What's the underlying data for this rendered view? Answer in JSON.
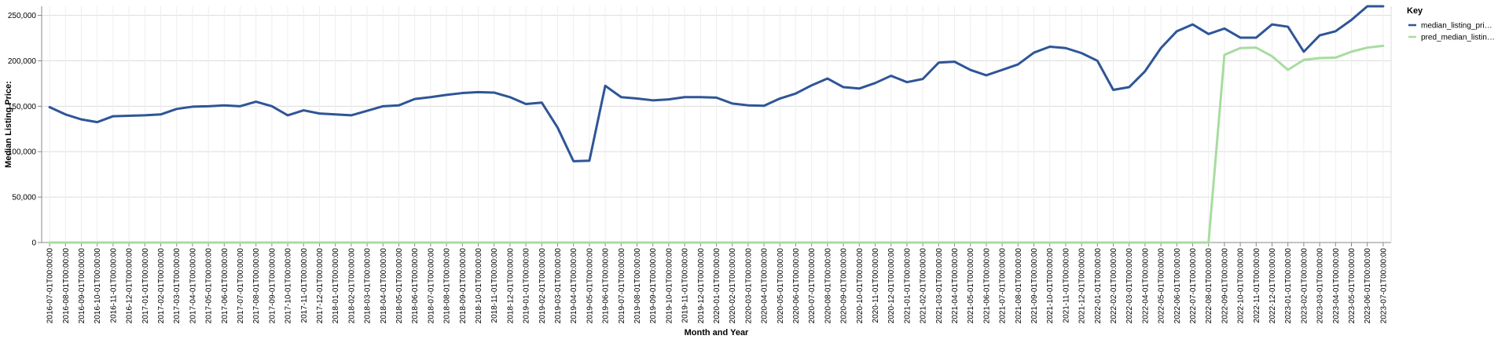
{
  "chart_data": {
    "type": "line",
    "xlabel": "Month and Year",
    "ylabel": "Median Listing Price:",
    "ylim": [
      0,
      260000
    ],
    "yticks": [
      0,
      50000,
      100000,
      150000,
      200000,
      250000
    ],
    "ytick_labels": [
      "0",
      "50,000",
      "100,000",
      "150,000",
      "200,000",
      "250,000"
    ],
    "grid": true,
    "legend_title": "Key",
    "legend_position": "right",
    "x": [
      "2016-07-01T00:00:00",
      "2016-08-01T00:00:00",
      "2016-09-01T00:00:00",
      "2016-10-01T00:00:00",
      "2016-11-01T00:00:00",
      "2016-12-01T00:00:00",
      "2017-01-01T00:00:00",
      "2017-02-01T00:00:00",
      "2017-03-01T00:00:00",
      "2017-04-01T00:00:00",
      "2017-05-01T00:00:00",
      "2017-06-01T00:00:00",
      "2017-07-01T00:00:00",
      "2017-08-01T00:00:00",
      "2017-09-01T00:00:00",
      "2017-10-01T00:00:00",
      "2017-11-01T00:00:00",
      "2017-12-01T00:00:00",
      "2018-01-01T00:00:00",
      "2018-02-01T00:00:00",
      "2018-03-01T00:00:00",
      "2018-04-01T00:00:00",
      "2018-05-01T00:00:00",
      "2018-06-01T00:00:00",
      "2018-07-01T00:00:00",
      "2018-08-01T00:00:00",
      "2018-09-01T00:00:00",
      "2018-10-01T00:00:00",
      "2018-11-01T00:00:00",
      "2018-12-01T00:00:00",
      "2019-01-01T00:00:00",
      "2019-02-01T00:00:00",
      "2019-03-01T00:00:00",
      "2019-04-01T00:00:00",
      "2019-05-01T00:00:00",
      "2019-06-01T00:00:00",
      "2019-07-01T00:00:00",
      "2019-08-01T00:00:00",
      "2019-09-01T00:00:00",
      "2019-10-01T00:00:00",
      "2019-11-01T00:00:00",
      "2019-12-01T00:00:00",
      "2020-01-01T00:00:00",
      "2020-02-01T00:00:00",
      "2020-03-01T00:00:00",
      "2020-04-01T00:00:00",
      "2020-05-01T00:00:00",
      "2020-06-01T00:00:00",
      "2020-07-01T00:00:00",
      "2020-08-01T00:00:00",
      "2020-09-01T00:00:00",
      "2020-10-01T00:00:00",
      "2020-11-01T00:00:00",
      "2020-12-01T00:00:00",
      "2021-01-01T00:00:00",
      "2021-02-01T00:00:00",
      "2021-03-01T00:00:00",
      "2021-04-01T00:00:00",
      "2021-05-01T00:00:00",
      "2021-06-01T00:00:00",
      "2021-07-01T00:00:00",
      "2021-08-01T00:00:00",
      "2021-09-01T00:00:00",
      "2021-10-01T00:00:00",
      "2021-11-01T00:00:00",
      "2021-12-01T00:00:00",
      "2022-01-01T00:00:00",
      "2022-02-01T00:00:00",
      "2022-03-01T00:00:00",
      "2022-04-01T00:00:00",
      "2022-05-01T00:00:00",
      "2022-06-01T00:00:00",
      "2022-07-01T00:00:00",
      "2022-08-01T00:00:00",
      "2022-09-01T00:00:00",
      "2022-10-01T00:00:00",
      "2022-11-01T00:00:00",
      "2022-12-01T00:00:00",
      "2023-01-01T00:00:00",
      "2023-02-01T00:00:00",
      "2023-03-01T00:00:00",
      "2023-04-01T00:00:00",
      "2023-05-01T00:00:00",
      "2023-06-01T00:00:00",
      "2023-07-01T00:00:00"
    ],
    "series": [
      {
        "name": "median_listing_pri…",
        "color": "#2e5597",
        "values": [
          149000,
          141000,
          135500,
          132500,
          139000,
          139500,
          140000,
          141000,
          147000,
          149500,
          150000,
          151000,
          150000,
          155000,
          150000,
          140000,
          145500,
          142000,
          141000,
          140000,
          145000,
          150000,
          151000,
          158000,
          160000,
          162500,
          164500,
          165500,
          165000,
          160000,
          152500,
          154000,
          126500,
          89500,
          90000,
          172500,
          160000,
          158500,
          156500,
          157500,
          160000,
          160000,
          159500,
          153000,
          151000,
          150500,
          158500,
          164000,
          173000,
          180500,
          171000,
          169500,
          175500,
          183500,
          176500,
          180000,
          198000,
          199000,
          190000,
          184000,
          190000,
          196000,
          209000,
          215500,
          214000,
          208500,
          200000,
          168000,
          171000,
          188500,
          214000,
          232500,
          240000,
          229500,
          235500,
          225500,
          225500,
          240000,
          237500,
          210000,
          228000,
          232500,
          245000,
          260000,
          260000
        ]
      },
      {
        "name": "pred_median_listin…",
        "color": "#a8dca0",
        "values": [
          0,
          0,
          0,
          0,
          0,
          0,
          0,
          0,
          0,
          0,
          0,
          0,
          0,
          0,
          0,
          0,
          0,
          0,
          0,
          0,
          0,
          0,
          0,
          0,
          0,
          0,
          0,
          0,
          0,
          0,
          0,
          0,
          0,
          0,
          0,
          0,
          0,
          0,
          0,
          0,
          0,
          0,
          0,
          0,
          0,
          0,
          0,
          0,
          0,
          0,
          0,
          0,
          0,
          0,
          0,
          0,
          0,
          0,
          0,
          0,
          0,
          0,
          0,
          0,
          0,
          0,
          0,
          0,
          0,
          0,
          0,
          0,
          0,
          0,
          206500,
          214000,
          214500,
          205000,
          190000,
          201000,
          203000,
          203500,
          210000,
          214500,
          216500
        ]
      }
    ]
  }
}
